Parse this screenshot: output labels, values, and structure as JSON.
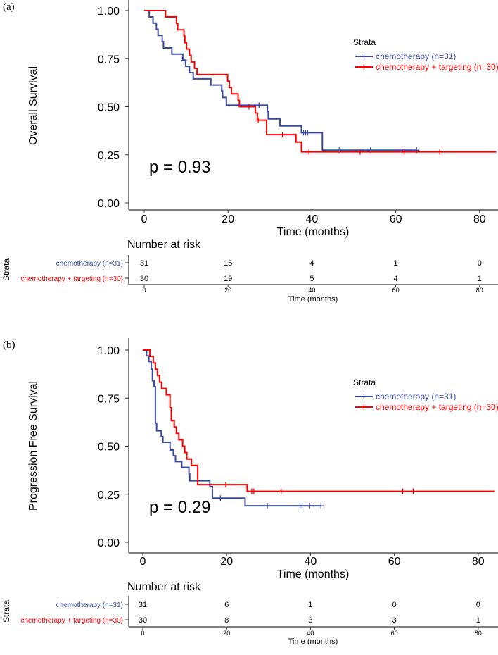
{
  "chart_data": [
    {
      "type": "line",
      "panel_label": "(a)",
      "ylabel": "Overall Survival",
      "xlabel": "Time (months)",
      "xlim": [
        -4,
        84
      ],
      "ylim": [
        0,
        1
      ],
      "xticks": [
        "0",
        "20",
        "40",
        "60",
        "80"
      ],
      "yticks": [
        "0.00",
        "0.25",
        "0.50",
        "0.75",
        "1.00"
      ],
      "p_value": "p = 0.93",
      "legend_title": "Strata",
      "legend_position": "right",
      "series": [
        {
          "name": "chemotherapy (n=31)",
          "color": "#3a4a9e",
          "steps": [
            [
              0,
              1
            ],
            [
              1.2,
              0.967
            ],
            [
              2.1,
              0.935
            ],
            [
              2.9,
              0.903
            ],
            [
              3.3,
              0.871
            ],
            [
              4.3,
              0.839
            ],
            [
              4.6,
              0.806
            ],
            [
              6.6,
              0.774
            ],
            [
              9.2,
              0.742
            ],
            [
              9.9,
              0.71
            ],
            [
              10.8,
              0.677
            ],
            [
              11.7,
              0.645
            ],
            [
              15.9,
              0.613
            ],
            [
              18.5,
              0.581
            ],
            [
              18.7,
              0.548
            ],
            [
              19.6,
              0.508
            ],
            [
              29.4,
              0.475
            ],
            [
              29.6,
              0.437
            ],
            [
              32.4,
              0.4
            ],
            [
              37.5,
              0.365
            ],
            [
              42.5,
              0.274
            ],
            [
              65,
              0.274
            ]
          ],
          "censored": [
            9.5,
            27.4,
            38,
            38.5,
            39,
            46.5,
            54,
            62,
            65
          ]
        },
        {
          "name": "chemotherapy + targeting (n=30)",
          "color": "#ff0000",
          "steps": [
            [
              0,
              1
            ],
            [
              5.1,
              0.967
            ],
            [
              7.7,
              0.933
            ],
            [
              8.0,
              0.9
            ],
            [
              9.5,
              0.867
            ],
            [
              9.7,
              0.833
            ],
            [
              10.1,
              0.8
            ],
            [
              10.8,
              0.767
            ],
            [
              11.2,
              0.733
            ],
            [
              12.0,
              0.7
            ],
            [
              12.6,
              0.667
            ],
            [
              19.9,
              0.633
            ],
            [
              20.3,
              0.6
            ],
            [
              20.8,
              0.567
            ],
            [
              22.4,
              0.533
            ],
            [
              22.7,
              0.5
            ],
            [
              26.5,
              0.467
            ],
            [
              27.0,
              0.43
            ],
            [
              29.2,
              0.355
            ],
            [
              36.2,
              0.316
            ],
            [
              37.5,
              0.265
            ],
            [
              84,
              0.265
            ]
          ],
          "censored": [
            25,
            27.2,
            33,
            39.3,
            51.5,
            62,
            70.5
          ]
        }
      ],
      "risk_table": {
        "title": "Number at risk",
        "strata_label": "Strata",
        "xlabel": "Time (months)",
        "times": [
          "0",
          "20",
          "40",
          "60",
          "80"
        ],
        "rows": [
          {
            "label": "chemotherapy (n=31)",
            "values": [
              "31",
              "15",
              "4",
              "1",
              "0"
            ]
          },
          {
            "label": "chemotherapy + targeting (n=30)",
            "values": [
              "30",
              "19",
              "5",
              "4",
              "1"
            ]
          }
        ]
      }
    },
    {
      "type": "line",
      "panel_label": "(b)",
      "ylabel": "Progression Free Survival",
      "xlabel": "Time (months)",
      "xlim": [
        -4,
        84
      ],
      "ylim": [
        0,
        1
      ],
      "xticks": [
        "0",
        "20",
        "40",
        "60",
        "80"
      ],
      "yticks": [
        "0.00",
        "0.25",
        "0.50",
        "0.75",
        "1.00"
      ],
      "p_value": "p = 0.29",
      "legend_title": "Strata",
      "legend_position": "right",
      "series": [
        {
          "name": "chemotherapy (n=31)",
          "color": "#3a4a9e",
          "steps": [
            [
              0,
              1
            ],
            [
              0.9,
              0.97
            ],
            [
              1.45,
              0.94
            ],
            [
              2.0,
              0.9
            ],
            [
              2.3,
              0.84
            ],
            [
              2.7,
              0.81
            ],
            [
              3.0,
              0.62
            ],
            [
              3.3,
              0.58
            ],
            [
              4.4,
              0.55
            ],
            [
              4.8,
              0.52
            ],
            [
              6.5,
              0.48
            ],
            [
              7.3,
              0.45
            ],
            [
              7.8,
              0.42
            ],
            [
              9.3,
              0.39
            ],
            [
              11.0,
              0.355
            ],
            [
              11.2,
              0.32
            ],
            [
              16.0,
              0.29
            ],
            [
              16.6,
              0.23
            ],
            [
              24.4,
              0.19
            ],
            [
              42.6,
              0.19
            ]
          ],
          "censored": [
            18.5,
            29.7,
            37.5,
            38,
            39.8,
            42.5
          ]
        },
        {
          "name": "chemotherapy + targeting (n=30)",
          "color": "#ff0000",
          "steps": [
            [
              0,
              1
            ],
            [
              1.7,
              0.967
            ],
            [
              2.5,
              0.933
            ],
            [
              3.0,
              0.9
            ],
            [
              3.5,
              0.867
            ],
            [
              4.0,
              0.833
            ],
            [
              4.5,
              0.8
            ],
            [
              5.6,
              0.767
            ],
            [
              6.5,
              0.7
            ],
            [
              6.8,
              0.633
            ],
            [
              7.5,
              0.6
            ],
            [
              8.0,
              0.567
            ],
            [
              8.6,
              0.533
            ],
            [
              9.5,
              0.5
            ],
            [
              10.0,
              0.467
            ],
            [
              10.5,
              0.433
            ],
            [
              11.6,
              0.4
            ],
            [
              13.1,
              0.3
            ],
            [
              24.9,
              0.265
            ],
            [
              84,
              0.265
            ]
          ],
          "censored": [
            19.8,
            26,
            26.5,
            33,
            62,
            64.5
          ]
        }
      ],
      "risk_table": {
        "title": "Number at risk",
        "strata_label": "Strata",
        "xlabel": "Time (months)",
        "times": [
          "0",
          "20",
          "40",
          "60",
          "80"
        ],
        "rows": [
          {
            "label": "chemotherapy (n=31)",
            "values": [
              "31",
              "6",
              "1",
              "0",
              "0"
            ]
          },
          {
            "label": "chemotherapy + targeting (n=30)",
            "values": [
              "30",
              "8",
              "3",
              "3",
              "1"
            ]
          }
        ]
      }
    }
  ]
}
